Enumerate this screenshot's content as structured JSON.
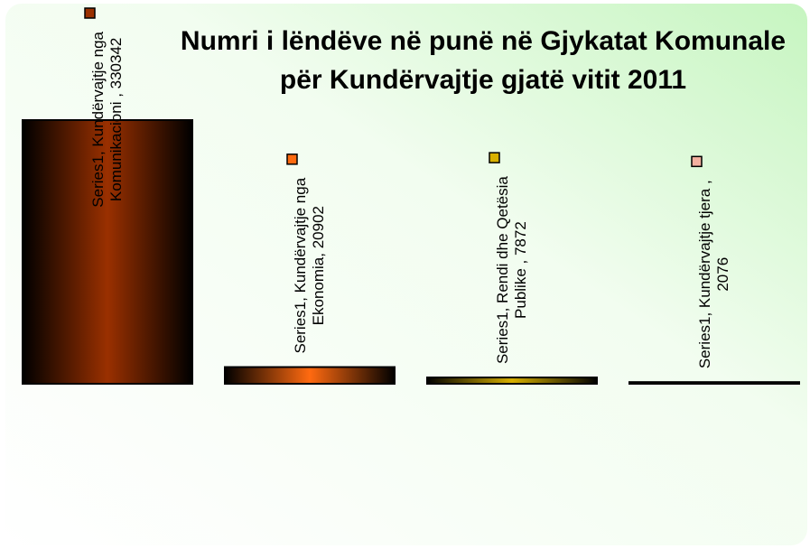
{
  "chart_data": {
    "type": "bar",
    "title": "Numri i lëndëve në punë në Gjykatat Komunale për Kundërvajtje gjatë vitit 2011",
    "values": [
      330342,
      20902,
      7872,
      2076
    ],
    "value_labels": [
      "Series1, Kundërvajtje nga Komunikacioni , 330342",
      "Series1, Kundërvajtje nga Ekonomia, 20902",
      "Series1, Rendi dhe Qetësia Publike , 7872",
      "Series1, Kundërvajtje tjera , 2076"
    ],
    "colors": [
      "#9a3000",
      "#ff6a10",
      "#d8b000",
      "#f4b0a0"
    ]
  }
}
